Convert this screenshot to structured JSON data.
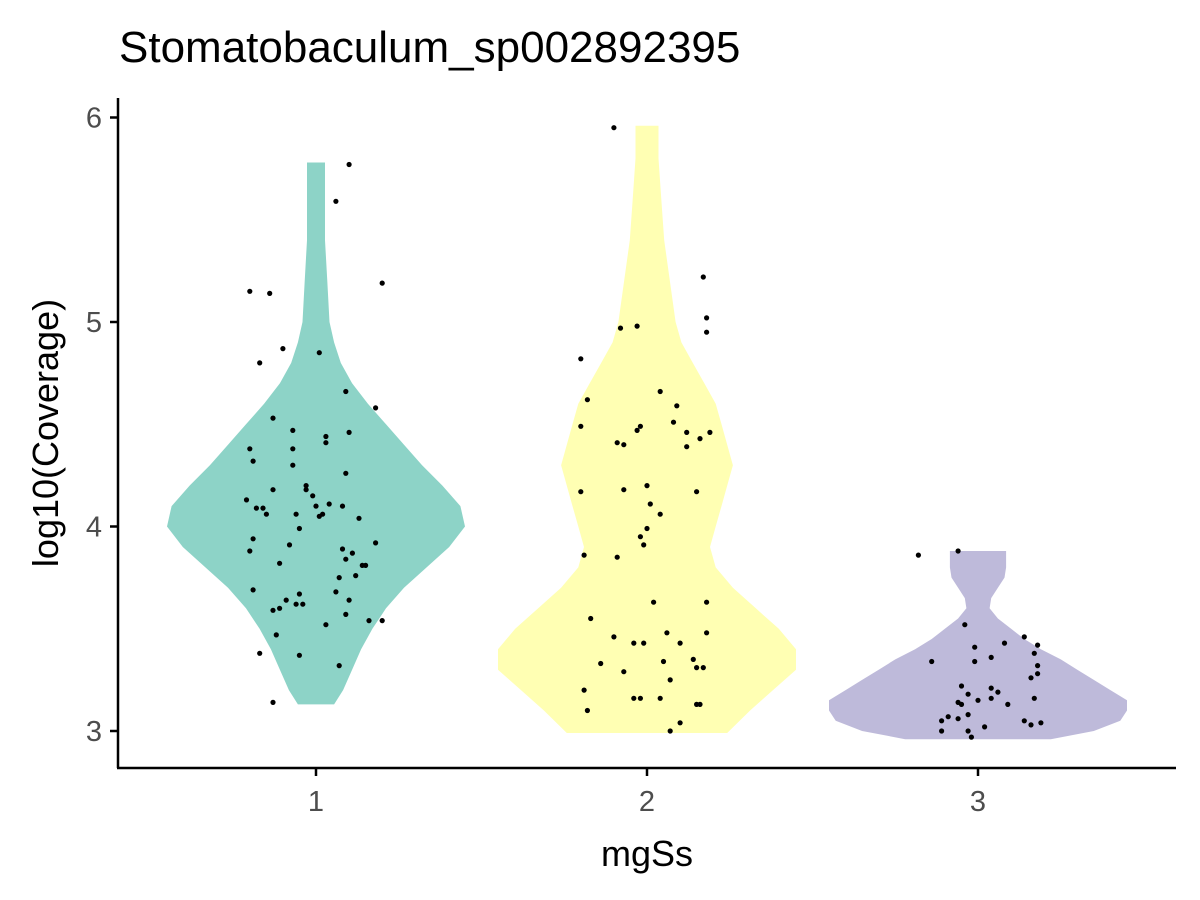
{
  "chart_data": {
    "type": "violin",
    "title": "Stomatobaculum_sp002892395",
    "xlabel": "mgSs",
    "ylabel": "log10(Coverage)",
    "categories": [
      "1",
      "2",
      "3"
    ],
    "y_ticks": [
      "3",
      "4",
      "5",
      "6"
    ],
    "ylim": [
      2.82,
      6.09
    ],
    "grid": false,
    "legend": "none",
    "colors": {
      "1": "#8dd3c7",
      "2": "#ffffb3",
      "3": "#bebada",
      "points": "#000000",
      "axis": "#000000"
    },
    "series": [
      {
        "category": "1",
        "y_range": [
          3.13,
          5.78
        ],
        "density": [
          [
            3.13,
            0.08
          ],
          [
            3.2,
            0.12
          ],
          [
            3.3,
            0.16
          ],
          [
            3.4,
            0.2
          ],
          [
            3.5,
            0.25
          ],
          [
            3.6,
            0.31
          ],
          [
            3.7,
            0.39
          ],
          [
            3.8,
            0.49
          ],
          [
            3.9,
            0.59
          ],
          [
            4.0,
            0.66
          ],
          [
            4.1,
            0.64
          ],
          [
            4.2,
            0.56
          ],
          [
            4.3,
            0.47
          ],
          [
            4.4,
            0.39
          ],
          [
            4.5,
            0.31
          ],
          [
            4.6,
            0.23
          ],
          [
            4.7,
            0.16
          ],
          [
            4.8,
            0.11
          ],
          [
            4.9,
            0.08
          ],
          [
            5.0,
            0.06
          ],
          [
            5.2,
            0.05
          ],
          [
            5.4,
            0.04
          ],
          [
            5.6,
            0.04
          ],
          [
            5.78,
            0.04
          ]
        ],
        "points": [
          [
            -0.2,
            5.15
          ],
          [
            -0.14,
            5.14
          ],
          [
            0.1,
            5.77
          ],
          [
            0.06,
            5.59
          ],
          [
            0.2,
            5.19
          ],
          [
            -0.1,
            4.87
          ],
          [
            -0.17,
            4.8
          ],
          [
            0.01,
            4.85
          ],
          [
            0.09,
            4.66
          ],
          [
            0.18,
            4.58
          ],
          [
            -0.13,
            4.53
          ],
          [
            -0.07,
            4.47
          ],
          [
            0.03,
            4.44
          ],
          [
            0.1,
            4.46
          ],
          [
            -0.2,
            4.38
          ],
          [
            -0.19,
            4.32
          ],
          [
            -0.07,
            4.38
          ],
          [
            0.03,
            4.41
          ],
          [
            -0.07,
            4.3
          ],
          [
            0.09,
            4.26
          ],
          [
            -0.03,
            4.18
          ],
          [
            -0.03,
            4.2
          ],
          [
            -0.01,
            4.15
          ],
          [
            -0.13,
            4.18
          ],
          [
            -0.21,
            4.13
          ],
          [
            -0.18,
            4.09
          ],
          [
            -0.15,
            4.06
          ],
          [
            -0.16,
            4.09
          ],
          [
            -0.06,
            4.06
          ],
          [
            0.0,
            4.1
          ],
          [
            0.02,
            4.06
          ],
          [
            0.04,
            4.11
          ],
          [
            0.08,
            4.1
          ],
          [
            0.13,
            4.04
          ],
          [
            -0.05,
            3.99
          ],
          [
            0.01,
            4.05
          ],
          [
            0.18,
            3.92
          ],
          [
            0.11,
            3.87
          ],
          [
            -0.19,
            3.94
          ],
          [
            -0.2,
            3.88
          ],
          [
            -0.11,
            3.82
          ],
          [
            -0.08,
            3.91
          ],
          [
            0.08,
            3.89
          ],
          [
            0.09,
            3.84
          ],
          [
            0.14,
            3.81
          ],
          [
            0.12,
            3.76
          ],
          [
            0.15,
            3.81
          ],
          [
            0.07,
            3.75
          ],
          [
            -0.19,
            3.69
          ],
          [
            -0.13,
            3.59
          ],
          [
            -0.11,
            3.6
          ],
          [
            -0.09,
            3.64
          ],
          [
            -0.06,
            3.62
          ],
          [
            -0.05,
            3.67
          ],
          [
            -0.04,
            3.62
          ],
          [
            0.06,
            3.68
          ],
          [
            0.1,
            3.64
          ],
          [
            0.16,
            3.54
          ],
          [
            0.09,
            3.57
          ],
          [
            0.2,
            3.54
          ],
          [
            0.03,
            3.52
          ],
          [
            -0.12,
            3.47
          ],
          [
            -0.17,
            3.38
          ],
          [
            -0.05,
            3.37
          ],
          [
            0.07,
            3.32
          ],
          [
            -0.13,
            3.14
          ]
        ]
      },
      {
        "category": "2",
        "y_range": [
          2.99,
          5.96
        ],
        "density": [
          [
            2.99,
            0.14
          ],
          [
            3.1,
            0.18
          ],
          [
            3.2,
            0.22
          ],
          [
            3.3,
            0.26
          ],
          [
            3.4,
            0.26
          ],
          [
            3.5,
            0.23
          ],
          [
            3.6,
            0.19
          ],
          [
            3.7,
            0.15
          ],
          [
            3.8,
            0.12
          ],
          [
            3.9,
            0.11
          ],
          [
            4.0,
            0.12
          ],
          [
            4.1,
            0.13
          ],
          [
            4.2,
            0.14
          ],
          [
            4.3,
            0.15
          ],
          [
            4.4,
            0.14
          ],
          [
            4.5,
            0.13
          ],
          [
            4.6,
            0.12
          ],
          [
            4.7,
            0.1
          ],
          [
            4.8,
            0.08
          ],
          [
            4.9,
            0.06
          ],
          [
            5.0,
            0.05
          ],
          [
            5.2,
            0.04
          ],
          [
            5.4,
            0.03
          ],
          [
            5.6,
            0.025
          ],
          [
            5.8,
            0.02
          ],
          [
            5.96,
            0.02
          ]
        ],
        "points": [
          [
            -0.1,
            5.95
          ],
          [
            0.17,
            5.22
          ],
          [
            0.18,
            5.02
          ],
          [
            0.18,
            4.95
          ],
          [
            -0.08,
            4.97
          ],
          [
            -0.03,
            4.98
          ],
          [
            -0.2,
            4.82
          ],
          [
            -0.18,
            4.62
          ],
          [
            -0.2,
            4.49
          ],
          [
            0.04,
            4.66
          ],
          [
            0.09,
            4.59
          ],
          [
            0.08,
            4.51
          ],
          [
            0.12,
            4.46
          ],
          [
            0.19,
            4.46
          ],
          [
            -0.03,
            4.47
          ],
          [
            -0.02,
            4.49
          ],
          [
            -0.09,
            4.41
          ],
          [
            -0.07,
            4.4
          ],
          [
            0.12,
            4.39
          ],
          [
            0.16,
            4.43
          ],
          [
            0.15,
            4.17
          ],
          [
            0.0,
            4.2
          ],
          [
            0.01,
            4.11
          ],
          [
            -0.07,
            4.18
          ],
          [
            -0.2,
            4.17
          ],
          [
            0.04,
            4.06
          ],
          [
            0.0,
            3.99
          ],
          [
            -0.02,
            3.95
          ],
          [
            -0.01,
            3.91
          ],
          [
            -0.09,
            3.85
          ],
          [
            -0.19,
            3.86
          ],
          [
            0.02,
            3.63
          ],
          [
            0.18,
            3.63
          ],
          [
            -0.17,
            3.55
          ],
          [
            0.06,
            3.48
          ],
          [
            0.1,
            3.43
          ],
          [
            0.18,
            3.48
          ],
          [
            -0.1,
            3.46
          ],
          [
            0.14,
            3.35
          ],
          [
            0.05,
            3.34
          ],
          [
            -0.04,
            3.43
          ],
          [
            -0.01,
            3.43
          ],
          [
            -0.14,
            3.33
          ],
          [
            -0.07,
            3.29
          ],
          [
            0.07,
            3.25
          ],
          [
            0.15,
            3.31
          ],
          [
            0.17,
            3.31
          ],
          [
            -0.19,
            3.2
          ],
          [
            -0.04,
            3.16
          ],
          [
            -0.02,
            3.16
          ],
          [
            0.04,
            3.16
          ],
          [
            0.15,
            3.13
          ],
          [
            0.16,
            3.13
          ],
          [
            0.1,
            3.04
          ],
          [
            0.07,
            3.0
          ],
          [
            -0.18,
            3.1
          ]
        ]
      },
      {
        "category": "3",
        "y_range": [
          2.96,
          3.88
        ],
        "density": [
          [
            2.96,
            0.22
          ],
          [
            3.0,
            0.35
          ],
          [
            3.05,
            0.43
          ],
          [
            3.1,
            0.45
          ],
          [
            3.15,
            0.45
          ],
          [
            3.2,
            0.4
          ],
          [
            3.25,
            0.35
          ],
          [
            3.3,
            0.3
          ],
          [
            3.35,
            0.25
          ],
          [
            3.4,
            0.19
          ],
          [
            3.45,
            0.14
          ],
          [
            3.5,
            0.1
          ],
          [
            3.55,
            0.06
          ],
          [
            3.6,
            0.035
          ],
          [
            3.65,
            0.04
          ],
          [
            3.7,
            0.06
          ],
          [
            3.75,
            0.08
          ],
          [
            3.8,
            0.085
          ],
          [
            3.88,
            0.085
          ]
        ],
        "points": [
          [
            -0.18,
            3.86
          ],
          [
            -0.06,
            3.88
          ],
          [
            -0.04,
            3.52
          ],
          [
            -0.01,
            3.41
          ],
          [
            -0.01,
            3.34
          ],
          [
            -0.14,
            3.34
          ],
          [
            0.04,
            3.21
          ],
          [
            0.04,
            3.16
          ],
          [
            0.06,
            3.19
          ],
          [
            -0.05,
            3.22
          ],
          [
            -0.03,
            3.18
          ],
          [
            0.0,
            3.15
          ],
          [
            -0.06,
            3.14
          ],
          [
            -0.09,
            3.07
          ],
          [
            -0.06,
            3.06
          ],
          [
            -0.05,
            3.13
          ],
          [
            -0.11,
            3.05
          ],
          [
            -0.11,
            3.0
          ],
          [
            -0.03,
            3.0
          ],
          [
            -0.03,
            3.08
          ],
          [
            0.09,
            3.13
          ],
          [
            0.02,
            3.02
          ],
          [
            0.08,
            3.43
          ],
          [
            0.04,
            3.36
          ],
          [
            -0.02,
            2.97
          ],
          [
            0.14,
            3.46
          ],
          [
            0.17,
            3.38
          ],
          [
            0.18,
            3.42
          ],
          [
            0.18,
            3.32
          ],
          [
            0.18,
            3.28
          ],
          [
            0.16,
            3.26
          ],
          [
            0.17,
            3.16
          ],
          [
            0.19,
            3.04
          ],
          [
            0.14,
            3.05
          ],
          [
            0.16,
            3.03
          ]
        ]
      }
    ]
  }
}
